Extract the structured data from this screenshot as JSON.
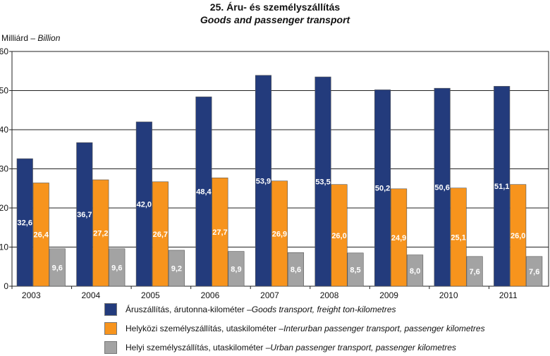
{
  "chart_data": {
    "type": "bar",
    "title": "25. Áru- és személyszállítás",
    "subtitle": "Goods and passenger transport",
    "ylabel_hu": "Milliárd",
    "ylabel_en": "Billion",
    "ylim": [
      0,
      60
    ],
    "yticks": [
      0,
      10,
      20,
      30,
      40,
      50,
      60
    ],
    "grid": true,
    "legend_position": "bottom",
    "categories": [
      "2003",
      "2004",
      "2005",
      "2006",
      "2007",
      "2008",
      "2009",
      "2010",
      "2011"
    ],
    "series": [
      {
        "name_hu": "Áruszállítás, árutonna-kilométer",
        "name_en": "Goods transport, freight ton-kilometres",
        "color": "#233b7c",
        "values": [
          32.6,
          36.7,
          42.0,
          48.4,
          53.9,
          53.5,
          50.2,
          50.6,
          51.1
        ],
        "labels": [
          "32,6",
          "36,7",
          "42,0",
          "48,4",
          "53,9",
          "53,5",
          "50,2",
          "50,6",
          "51,1"
        ]
      },
      {
        "name_hu": "Helyközi személyszállítás, utaskilométer",
        "name_en": "Interurban passenger transport, passenger kilometres",
        "color": "#f7941d",
        "values": [
          26.4,
          27.2,
          26.7,
          27.7,
          26.9,
          26.0,
          24.9,
          25.1,
          26.0
        ],
        "labels": [
          "26,4",
          "27,2",
          "26,7",
          "27,7",
          "26,9",
          "26,0",
          "24,9",
          "25,1",
          "26,0"
        ]
      },
      {
        "name_hu": "Helyi személyszállítás, utaskilométer",
        "name_en": "Urban passenger transport, passenger kilometres",
        "color": "#a3a3a3",
        "values": [
          9.6,
          9.6,
          9.2,
          8.9,
          8.6,
          8.5,
          8.0,
          7.6,
          7.6
        ],
        "labels": [
          "9,6",
          "9,6",
          "9,2",
          "8,9",
          "8,6",
          "8,5",
          "8,0",
          "7,6",
          "7,6"
        ]
      }
    ]
  }
}
